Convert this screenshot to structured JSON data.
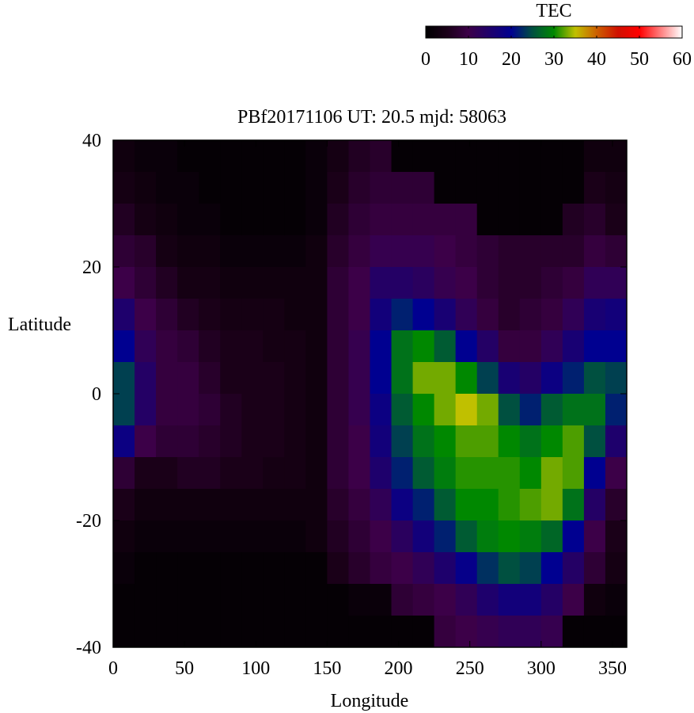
{
  "chart_data": {
    "type": "heatmap",
    "title": "PBf20171106  UT: 20.5  mjd: 58063",
    "xlabel": "Longitude",
    "ylabel": "Latitude",
    "xlim": [
      0,
      360
    ],
    "ylim": [
      -40,
      40
    ],
    "x_ticks": [
      "0",
      "50",
      "100",
      "150",
      "200",
      "250",
      "300",
      "350"
    ],
    "y_ticks": [
      "40",
      "20",
      "0",
      "-20",
      "-40"
    ],
    "colorbar": {
      "label": "TEC",
      "range": [
        0,
        60
      ],
      "ticks": [
        "0",
        "10",
        "20",
        "30",
        "40",
        "50",
        "60"
      ],
      "colors": [
        {
          "value": 0,
          "color": "#000000"
        },
        {
          "value": 5,
          "color": "#1a0018"
        },
        {
          "value": 10,
          "color": "#3c0048"
        },
        {
          "value": 20,
          "color": "#000090"
        },
        {
          "value": 25,
          "color": "#005040"
        },
        {
          "value": 30,
          "color": "#008800"
        },
        {
          "value": 35,
          "color": "#c0c000"
        },
        {
          "value": 40,
          "color": "#cc6000"
        },
        {
          "value": 45,
          "color": "#d01000"
        },
        {
          "value": 50,
          "color": "#ff0000"
        },
        {
          "value": 60,
          "color": "#ffffff"
        }
      ]
    },
    "x": [
      7.5,
      22.5,
      37.5,
      52.5,
      67.5,
      82.5,
      97.5,
      112.5,
      127.5,
      142.5,
      157.5,
      172.5,
      187.5,
      202.5,
      217.5,
      232.5,
      247.5,
      262.5,
      277.5,
      292.5,
      307.5,
      322.5,
      337.5,
      352.5
    ],
    "y": [
      37.5,
      32.5,
      27.5,
      22.5,
      17.5,
      12.5,
      7.5,
      2.5,
      -2.5,
      -7.5,
      -12.5,
      -17.5,
      -22.5,
      -27.5,
      -32.5,
      -37.5
    ],
    "z": [
      [
        3,
        2,
        2,
        1,
        1,
        1,
        1,
        1,
        1,
        2,
        4,
        6,
        7,
        1,
        1,
        1,
        1,
        1,
        1,
        1,
        1,
        1,
        3,
        3
      ],
      [
        4,
        3,
        2,
        2,
        1,
        1,
        1,
        1,
        1,
        2,
        5,
        7,
        8,
        8,
        8,
        1,
        1,
        1,
        1,
        1,
        1,
        1,
        5,
        4
      ],
      [
        6,
        4,
        3,
        2,
        2,
        1,
        1,
        1,
        1,
        2,
        6,
        8,
        9,
        9,
        9,
        9,
        9,
        1,
        1,
        1,
        1,
        6,
        7,
        5
      ],
      [
        8,
        7,
        4,
        3,
        3,
        2,
        2,
        2,
        2,
        3,
        7,
        9,
        11,
        11,
        11,
        10,
        9,
        8,
        7,
        7,
        7,
        7,
        9,
        8
      ],
      [
        10,
        8,
        6,
        4,
        4,
        3,
        3,
        3,
        3,
        3,
        8,
        10,
        14,
        14,
        13,
        11,
        10,
        8,
        7,
        7,
        8,
        9,
        12,
        12
      ],
      [
        15,
        10,
        8,
        6,
        5,
        4,
        4,
        4,
        3,
        3,
        8,
        10,
        17,
        22,
        20,
        16,
        12,
        9,
        7,
        8,
        9,
        12,
        16,
        17
      ],
      [
        20,
        12,
        9,
        8,
        6,
        5,
        5,
        4,
        4,
        3,
        8,
        11,
        20,
        28,
        30,
        26,
        20,
        14,
        9,
        9,
        12,
        16,
        20,
        20
      ],
      [
        24,
        14,
        9,
        9,
        7,
        5,
        5,
        5,
        4,
        3,
        8,
        11,
        20,
        28,
        33,
        33,
        30,
        24,
        16,
        14,
        18,
        22,
        25,
        24
      ],
      [
        24,
        14,
        9,
        9,
        8,
        6,
        5,
        5,
        4,
        3,
        8,
        11,
        18,
        26,
        30,
        33,
        35,
        33,
        25,
        22,
        26,
        28,
        28,
        22
      ],
      [
        18,
        10,
        8,
        8,
        7,
        6,
        5,
        5,
        4,
        3,
        8,
        10,
        17,
        24,
        28,
        30,
        32,
        32,
        30,
        28,
        30,
        32,
        25,
        15
      ],
      [
        8,
        5,
        5,
        6,
        6,
        5,
        5,
        4,
        4,
        3,
        8,
        10,
        15,
        22,
        26,
        29,
        31,
        31,
        31,
        30,
        33,
        32,
        20,
        10
      ],
      [
        5,
        3,
        3,
        3,
        3,
        3,
        3,
        3,
        3,
        3,
        7,
        9,
        12,
        18,
        22,
        26,
        30,
        30,
        31,
        32,
        33,
        28,
        14,
        7
      ],
      [
        3,
        2,
        2,
        2,
        2,
        2,
        2,
        2,
        2,
        3,
        6,
        8,
        10,
        13,
        17,
        22,
        26,
        29,
        30,
        29,
        27,
        20,
        10,
        5
      ],
      [
        2,
        1,
        1,
        1,
        1,
        1,
        1,
        1,
        1,
        1,
        5,
        7,
        9,
        10,
        12,
        15,
        19,
        23,
        25,
        24,
        20,
        14,
        8,
        4
      ],
      [
        1,
        1,
        1,
        1,
        1,
        1,
        1,
        1,
        1,
        1,
        1,
        2,
        2,
        8,
        9,
        10,
        12,
        15,
        17,
        17,
        14,
        10,
        3,
        2
      ],
      [
        1,
        1,
        1,
        1,
        1,
        1,
        1,
        1,
        1,
        1,
        1,
        1,
        1,
        1,
        1,
        9,
        10,
        11,
        12,
        12,
        11,
        1,
        1,
        1
      ]
    ]
  }
}
